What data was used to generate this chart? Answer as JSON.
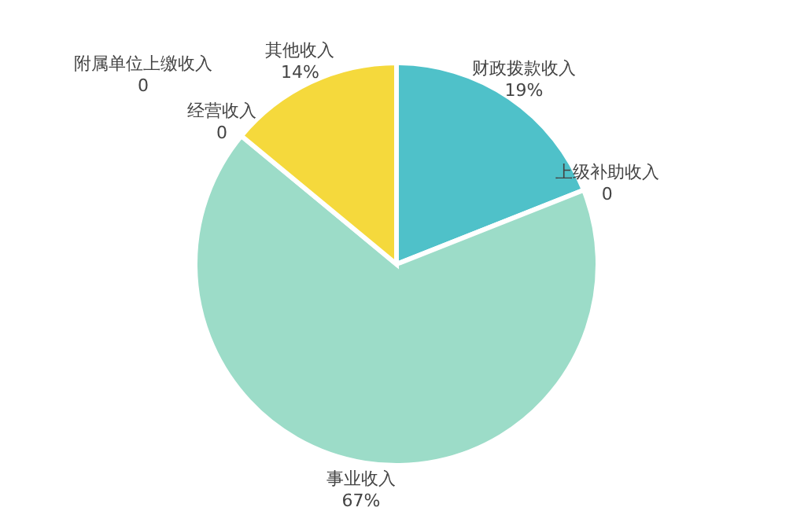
{
  "chart_data": {
    "type": "pie",
    "categories": [
      "财政拨款收入",
      "上级补助收入",
      "事业收入",
      "经营收入",
      "附属单位上缴收入",
      "其他收入"
    ],
    "values": [
      19,
      0,
      67,
      0,
      0,
      14
    ],
    "value_labels": [
      "19%",
      "0",
      "67%",
      "0",
      "0",
      "14%"
    ],
    "colors": [
      "#4fc1c9",
      "#7fb0e8",
      "#9cdcc8",
      "#f0a060",
      "#e07a7a",
      "#f5d93c"
    ],
    "legend": false
  }
}
